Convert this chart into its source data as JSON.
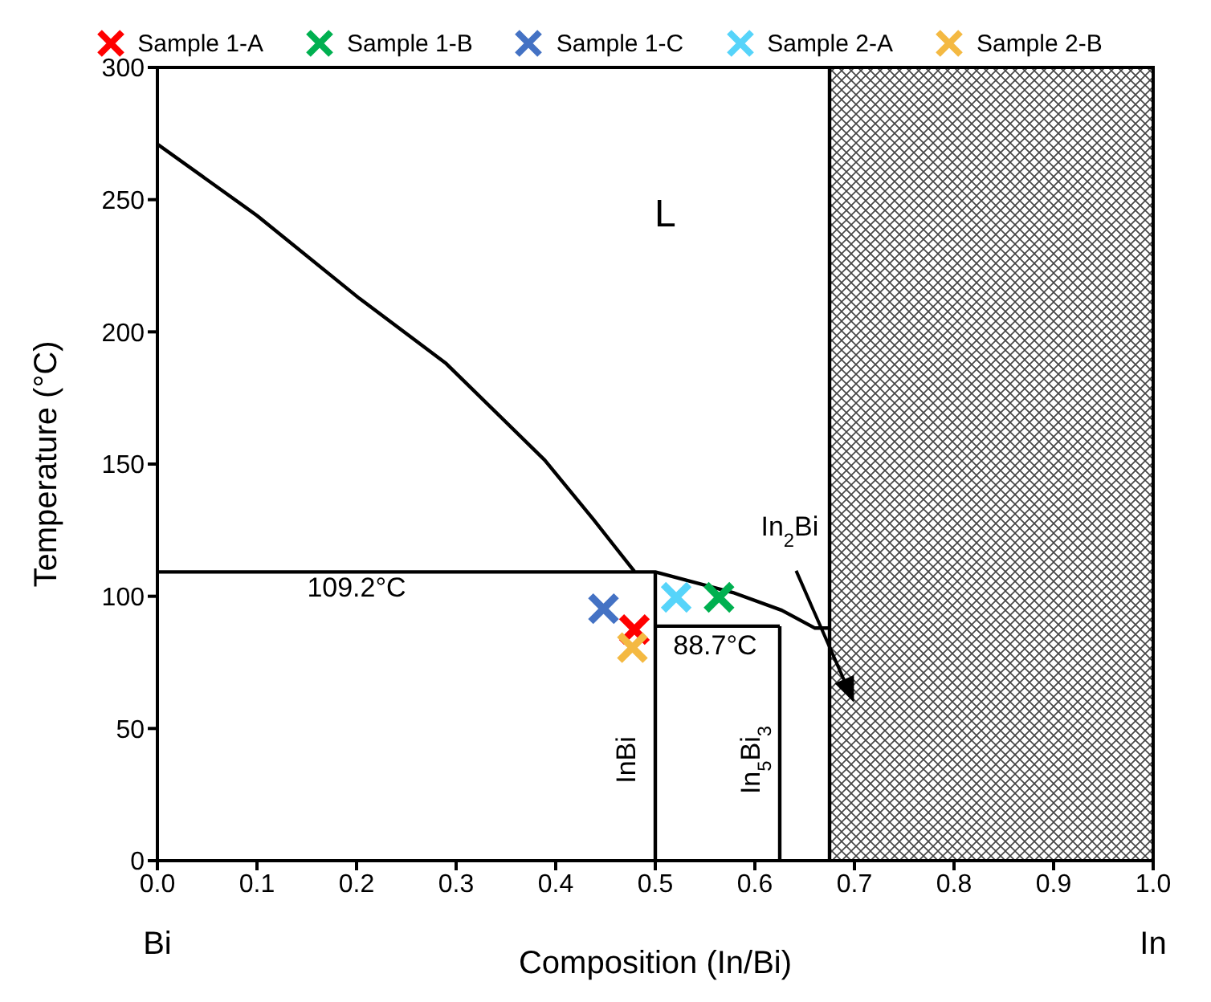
{
  "chart_data": {
    "type": "line",
    "xlabel": "Composition (In/Bi)",
    "ylabel": "Temperature (°C)",
    "xlim": [
      0,
      1
    ],
    "ylim": [
      0,
      300
    ],
    "xticks": [
      {
        "value": 0,
        "label": "0.0"
      },
      0.1,
      0.2,
      0.3,
      0.4,
      0.5,
      0.6,
      0.7,
      0.8,
      0.9,
      {
        "value": 1,
        "label": "1.0"
      }
    ],
    "yticks": [
      0,
      50,
      100,
      150,
      200,
      250,
      300
    ],
    "legend": "top",
    "marker": "none",
    "line_style": "solid",
    "bands": [
      {
        "axis": "x",
        "from": 0.675,
        "to": 1
      }
    ],
    "series": [
      {
        "color": "#000000",
        "x": [
          0,
          0.1,
          0.203,
          0.29,
          0.389,
          0.438,
          0.479
        ],
        "values": [
          271,
          244,
          212.6,
          188,
          151.5,
          129,
          109.4
        ]
      },
      {
        "color": "#000000",
        "x": [
          0,
          0.5,
          0.578,
          0.627,
          0.66,
          0.675
        ],
        "values": [
          109.2,
          109.2,
          101.4,
          94.7,
          88,
          88
        ]
      },
      {
        "color": "#000000",
        "x": [
          0.5,
          0.5
        ],
        "values": [
          0,
          109.2
        ]
      },
      {
        "color": "#000000",
        "x": [
          0.5,
          0.625
        ],
        "values": [
          88.7,
          88.7
        ]
      },
      {
        "color": "#000000",
        "x": [
          0.625,
          0.625
        ],
        "values": [
          0,
          88.7
        ]
      },
      {
        "color": "#000000",
        "x": [
          0.675,
          0.675
        ],
        "values": [
          0,
          300
        ]
      },
      {
        "type": "scatter",
        "name": "Sample 1-A",
        "color": "#ff0000",
        "marker": "cross",
        "x": [
          0.479
        ],
        "values": [
          87.4
        ]
      },
      {
        "type": "scatter",
        "name": "Sample 1-B",
        "color": "#00b050",
        "marker": "cross",
        "x": [
          0.564
        ],
        "values": [
          99.6
        ]
      },
      {
        "type": "scatter",
        "name": "Sample 1-C",
        "color": "#4472c4",
        "marker": "cross",
        "x": [
          0.448
        ],
        "values": [
          95.3
        ]
      },
      {
        "type": "scatter",
        "name": "Sample 2-A",
        "color": "#56d4fa",
        "marker": "cross",
        "x": [
          0.521
        ],
        "values": [
          99.6
        ]
      },
      {
        "type": "scatter",
        "name": "Sample 2-B",
        "color": "#f4b942",
        "marker": "cross",
        "x": [
          0.477
        ],
        "values": [
          80.6
        ]
      }
    ],
    "annotations": [
      "L",
      "109.2°C",
      "88.7°C",
      "InBi",
      "In$_{5}$Bi$_{3}$",
      "In$_{2}$Bi",
      "Bi",
      "In"
    ]
  }
}
